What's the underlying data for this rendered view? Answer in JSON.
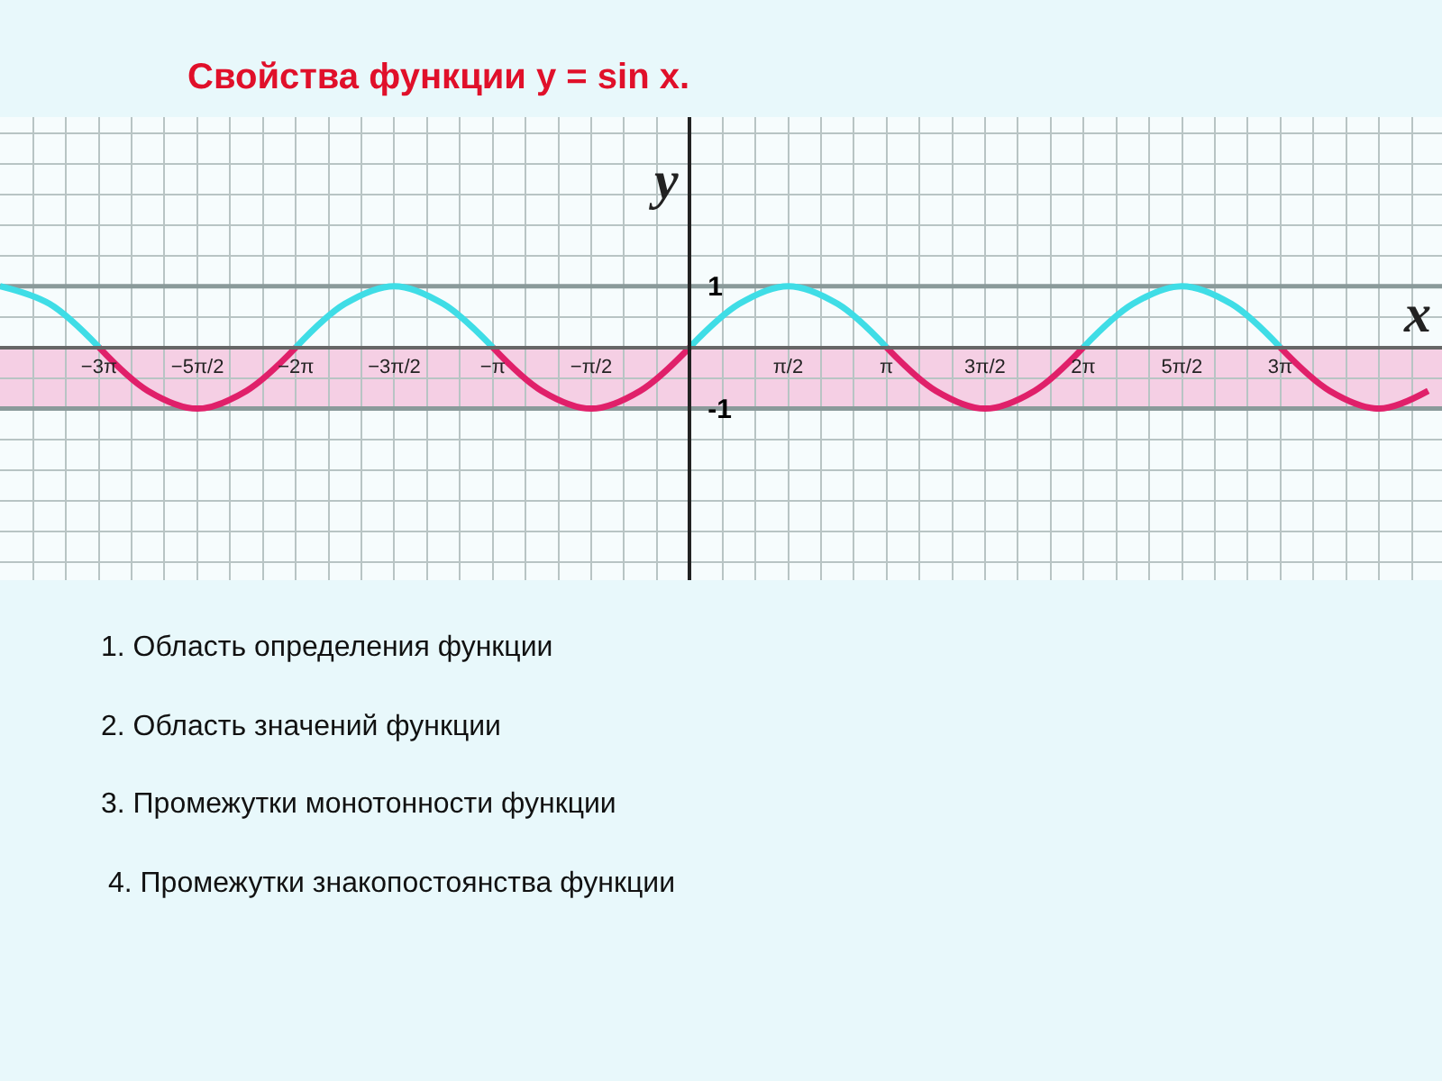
{
  "chart_data": {
    "type": "line",
    "title": "Свойства функции y = sin x.",
    "xlabel": "x",
    "ylabel": "y",
    "x": [
      -11.0,
      -10.21,
      -9.42,
      -8.64,
      -7.85,
      -7.07,
      -6.28,
      -5.5,
      -4.71,
      -3.93,
      -3.14,
      -2.36,
      -1.57,
      -0.79,
      0,
      0.79,
      1.57,
      2.36,
      3.14,
      3.93,
      4.71,
      5.5,
      6.28,
      7.07,
      7.85,
      8.64,
      9.42,
      10.21,
      11.0,
      11.78
    ],
    "series": [
      {
        "color": "#3fdde6",
        "values": [
          1,
          0.71,
          0,
          null,
          null,
          null,
          0,
          0.71,
          1,
          0.71,
          0,
          null,
          null,
          null,
          0,
          0.71,
          1,
          0.71,
          0,
          null,
          null,
          null,
          0,
          0.71,
          1,
          0.71,
          0,
          null,
          null,
          null
        ]
      },
      {
        "color": "#e0206a",
        "values": [
          null,
          null,
          0,
          -0.71,
          -1,
          -0.71,
          0,
          null,
          null,
          null,
          0,
          -0.71,
          -1,
          -0.71,
          0,
          null,
          null,
          null,
          0,
          -0.71,
          -1,
          -0.71,
          0,
          null,
          null,
          null,
          0,
          -0.71,
          -1,
          -0.71
        ]
      }
    ],
    "xlim": [
      -11.0,
      12.0
    ],
    "ylim": [
      -3.8,
      3.76
    ],
    "xticks": [
      {
        "value": -9.42,
        "label": "−3π"
      },
      {
        "value": -7.85,
        "label": "−5π/2"
      },
      {
        "value": -6.28,
        "label": "−2π"
      },
      {
        "value": -4.71,
        "label": "−3π/2"
      },
      {
        "value": -3.14,
        "label": "−π"
      },
      {
        "value": -1.57,
        "label": "−π/2"
      },
      {
        "value": 1.57,
        "label": "π/2"
      },
      {
        "value": 3.14,
        "label": "π"
      },
      {
        "value": 4.71,
        "label": "3π/2"
      },
      {
        "value": 6.28,
        "label": "2π"
      },
      {
        "value": 7.85,
        "label": "5π/2"
      },
      {
        "value": 9.42,
        "label": "3π"
      }
    ],
    "yticks": [
      1,
      -1
    ],
    "bands": [
      {
        "axis": "y",
        "from": -1,
        "to": 0,
        "color": "#f5cfe4"
      }
    ],
    "ref_lines": [
      {
        "axis": "y",
        "value": 1,
        "color": "#8a9a9a"
      },
      {
        "axis": "y",
        "value": -1,
        "color": "#8a9a9a"
      }
    ],
    "grid": true,
    "line_style": "solid",
    "marker": "none",
    "annotations": [
      "1. Область определения функции",
      "2. Область значений функции",
      "3. Промежутки монотонности функции",
      "4. Промежутки знакопостоянства функции"
    ]
  }
}
